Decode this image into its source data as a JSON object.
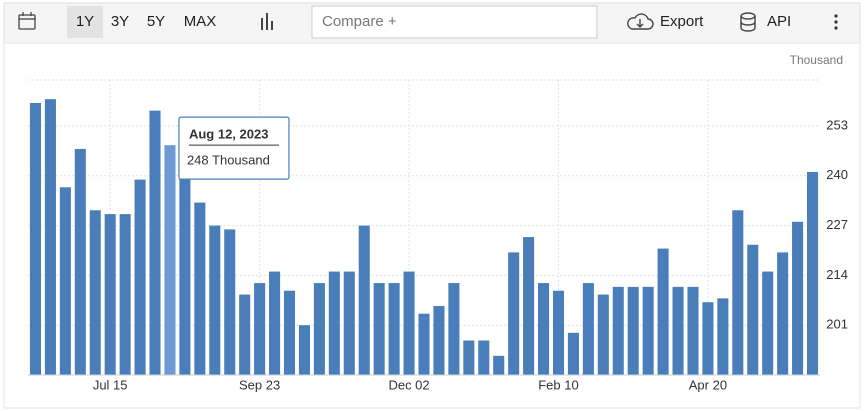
{
  "toolbar": {
    "ranges": [
      "1Y",
      "3Y",
      "5Y",
      "MAX"
    ],
    "compare": "Compare +",
    "export": "Export",
    "api": "API"
  },
  "chart_data": {
    "type": "bar",
    "unit": "Thousand",
    "color": "#4a7ebb",
    "highlight_color": "#6d9ad4",
    "grid": true,
    "categories": [
      null,
      null,
      null,
      null,
      null,
      "Jul 15",
      null,
      null,
      null,
      null,
      null,
      null,
      null,
      null,
      null,
      "Sep 23",
      null,
      null,
      null,
      null,
      null,
      null,
      null,
      null,
      null,
      "Dec 02",
      null,
      null,
      null,
      null,
      null,
      null,
      null,
      null,
      null,
      "Feb 10",
      null,
      null,
      null,
      null,
      null,
      null,
      null,
      null,
      null,
      "Apr 20",
      null,
      null,
      null,
      null,
      null,
      null,
      null
    ],
    "values": [
      259,
      260,
      237,
      247,
      231,
      230,
      230,
      239,
      257,
      248,
      241,
      233,
      227,
      226,
      209,
      212,
      215,
      210,
      201,
      212,
      215,
      215,
      227,
      212,
      212,
      215,
      204,
      206,
      212,
      197,
      197,
      193,
      220,
      224,
      212,
      210,
      199,
      212,
      209,
      211,
      211,
      211,
      221,
      211,
      211,
      207,
      208,
      231,
      222,
      215,
      220,
      228,
      241
    ],
    "ylim": [
      188,
      265
    ],
    "yticks": [
      201,
      214,
      227,
      240,
      253
    ],
    "tooltip": {
      "index": 9,
      "title": "Aug 12, 2023",
      "label": "248 Thousand"
    }
  }
}
